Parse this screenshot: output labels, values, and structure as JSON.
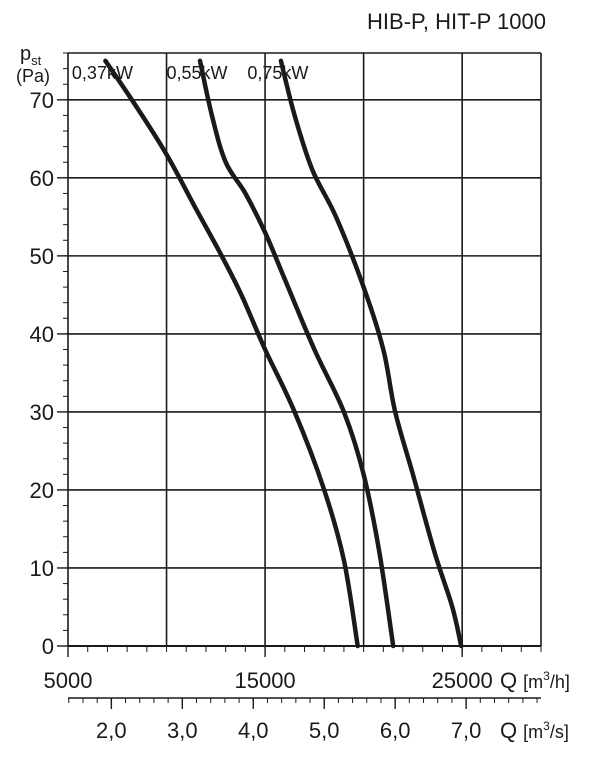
{
  "chart_data": {
    "type": "line",
    "title": "HIB-P, HIT-P 1000",
    "y_axis": {
      "label": "p",
      "label_sub": "st",
      "unit": "(Pa)",
      "range": [
        0,
        76
      ],
      "ticks": [
        0,
        10,
        20,
        30,
        40,
        50,
        60,
        70
      ],
      "tick_labels": [
        "0",
        "10",
        "20",
        "30",
        "40",
        "50",
        "60",
        "70"
      ],
      "minor_step": 2
    },
    "x_axis": {
      "label": "Q",
      "unit_open": "[m",
      "unit_sup": "3",
      "unit_close": "/h]",
      "range": [
        5000,
        29000
      ],
      "gridlines": [
        5000,
        10000,
        15000,
        20000,
        25000,
        29000
      ],
      "minor_step": 1000,
      "tick_values": [
        5000,
        15000,
        25000
      ],
      "tick_labels": [
        "5000",
        "15000",
        "25000"
      ]
    },
    "x2_axis": {
      "label": "Q",
      "unit_open": "[m",
      "unit_sup": "3",
      "unit_close": "/s]",
      "tick_values": [
        2.0,
        3.0,
        4.0,
        5.0,
        6.0,
        7.0
      ],
      "tick_labels": [
        "2,0",
        "3,0",
        "4,0",
        "5,0",
        "6,0",
        "7,0"
      ],
      "minor_step": 0.2
    },
    "grid": true,
    "series": [
      {
        "name": "0,37kW",
        "x": [
          6900,
          8500,
          10000,
          11500,
          12800,
          13800,
          15000,
          16500,
          18000,
          19000,
          19700
        ],
        "y": [
          75,
          69,
          63,
          56,
          50,
          45,
          38,
          30,
          20,
          11,
          0
        ]
      },
      {
        "name": "0,55kW",
        "x": [
          11700,
          12300,
          13000,
          14000,
          15000,
          16000,
          17500,
          19000,
          20000,
          20800,
          21500
        ],
        "y": [
          75,
          68,
          62,
          58,
          53,
          47,
          38,
          30,
          22,
          12,
          0
        ]
      },
      {
        "name": "0,75kW",
        "x": [
          15800,
          16500,
          17400,
          18600,
          20000,
          21000,
          21600,
          22500,
          23600,
          24500,
          24950
        ],
        "y": [
          75,
          68,
          61,
          55,
          46,
          38,
          30,
          22,
          12,
          5,
          0
        ]
      }
    ]
  }
}
